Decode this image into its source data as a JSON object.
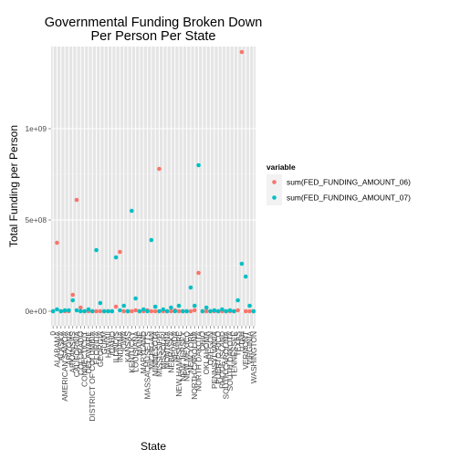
{
  "chart_data": {
    "type": "scatter",
    "title": [
      "Governmental Funding Broken Down",
      "Per Person Per State"
    ],
    "xlabel": "State",
    "ylabel": "Total Funding per Person",
    "ylim": [
      -80000000,
      1450000000
    ],
    "yticks": [
      {
        "value": 0,
        "label": "0e+00"
      },
      {
        "value": 500000000,
        "label": "5e+08"
      },
      {
        "value": 1000000000,
        "label": "1e+09"
      }
    ],
    "grid": true,
    "legend_position": "right",
    "categories": [
      "0",
      "ALABAMA",
      "ALASKA",
      "AMERICAN SAMOA",
      "ARIZONA",
      "ARKANSAS",
      "CALIFORNIA",
      "COLORADO",
      "CONNECTICUT",
      "DELAWARE",
      "DISTRICT OF COLUMBIA",
      "FLORIDA",
      "GEORGIA",
      "GUAM",
      "HAWAII",
      "IDAHO",
      "ILLINOIS",
      "INDIANA",
      "IOWA",
      "KANSAS",
      "KENTUCKY",
      "LOUISIANA",
      "MAINE",
      "MARYLAND",
      "MASSACHUSETTS",
      "MICHIGAN",
      "MINNESOTA",
      "MISSISSIPPI",
      "MISSOURI",
      "MONTANA",
      "NEBRASKA",
      "NEVADA",
      "NEW HAMPSHIRE",
      "NEW JERSEY",
      "NEW MEXICO",
      "NEW YORK",
      "NORTH CAROLINA",
      "NORTH DAKOTA",
      "OHIO",
      "OKLAHOMA",
      "OREGON",
      "PENNSYLVANIA",
      "PUERTO RICO",
      "RHODE ISLAND",
      "SOUTH CAROLINA",
      "SOUTH DAKOTA",
      "TENNESSEE",
      "TEXAS",
      "UTAH",
      "VERMONT",
      "VIRGINIA",
      "WASHINGTON"
    ],
    "series": [
      {
        "name": "sum(FED_FUNDING_AMOUNT_06)",
        "color": "#f8766d",
        "values": [
          0,
          375000000,
          0,
          0,
          0,
          90000000,
          610000000,
          20000000,
          0,
          0,
          0,
          0,
          0,
          0,
          0,
          0,
          25000000,
          325000000,
          0,
          0,
          0,
          5000000,
          0,
          0,
          5000000,
          0,
          0,
          780000000,
          0,
          0,
          0,
          5000000,
          0,
          0,
          0,
          0,
          5000000,
          210000000,
          0,
          0,
          0,
          0,
          0,
          0,
          0,
          0,
          0,
          5000000,
          1420000000,
          0,
          0,
          0
        ]
      },
      {
        "name": "sum(FED_FUNDING_AMOUNT_07)",
        "color": "#00bfc4",
        "values": [
          0,
          10000000,
          0,
          5000000,
          5000000,
          60000000,
          5000000,
          0,
          0,
          10000000,
          0,
          335000000,
          45000000,
          0,
          0,
          0,
          295000000,
          5000000,
          30000000,
          0,
          550000000,
          70000000,
          0,
          10000000,
          0,
          390000000,
          25000000,
          0,
          10000000,
          0,
          20000000,
          0,
          30000000,
          0,
          0,
          130000000,
          30000000,
          800000000,
          0,
          20000000,
          0,
          5000000,
          0,
          10000000,
          0,
          5000000,
          0,
          60000000,
          260000000,
          190000000,
          30000000,
          0
        ]
      }
    ]
  },
  "legend": {
    "title": "variable",
    "items": [
      {
        "label": "sum(FED_FUNDING_AMOUNT_06)",
        "color": "#f8766d"
      },
      {
        "label": "sum(FED_FUNDING_AMOUNT_07)",
        "color": "#00bfc4"
      }
    ]
  }
}
